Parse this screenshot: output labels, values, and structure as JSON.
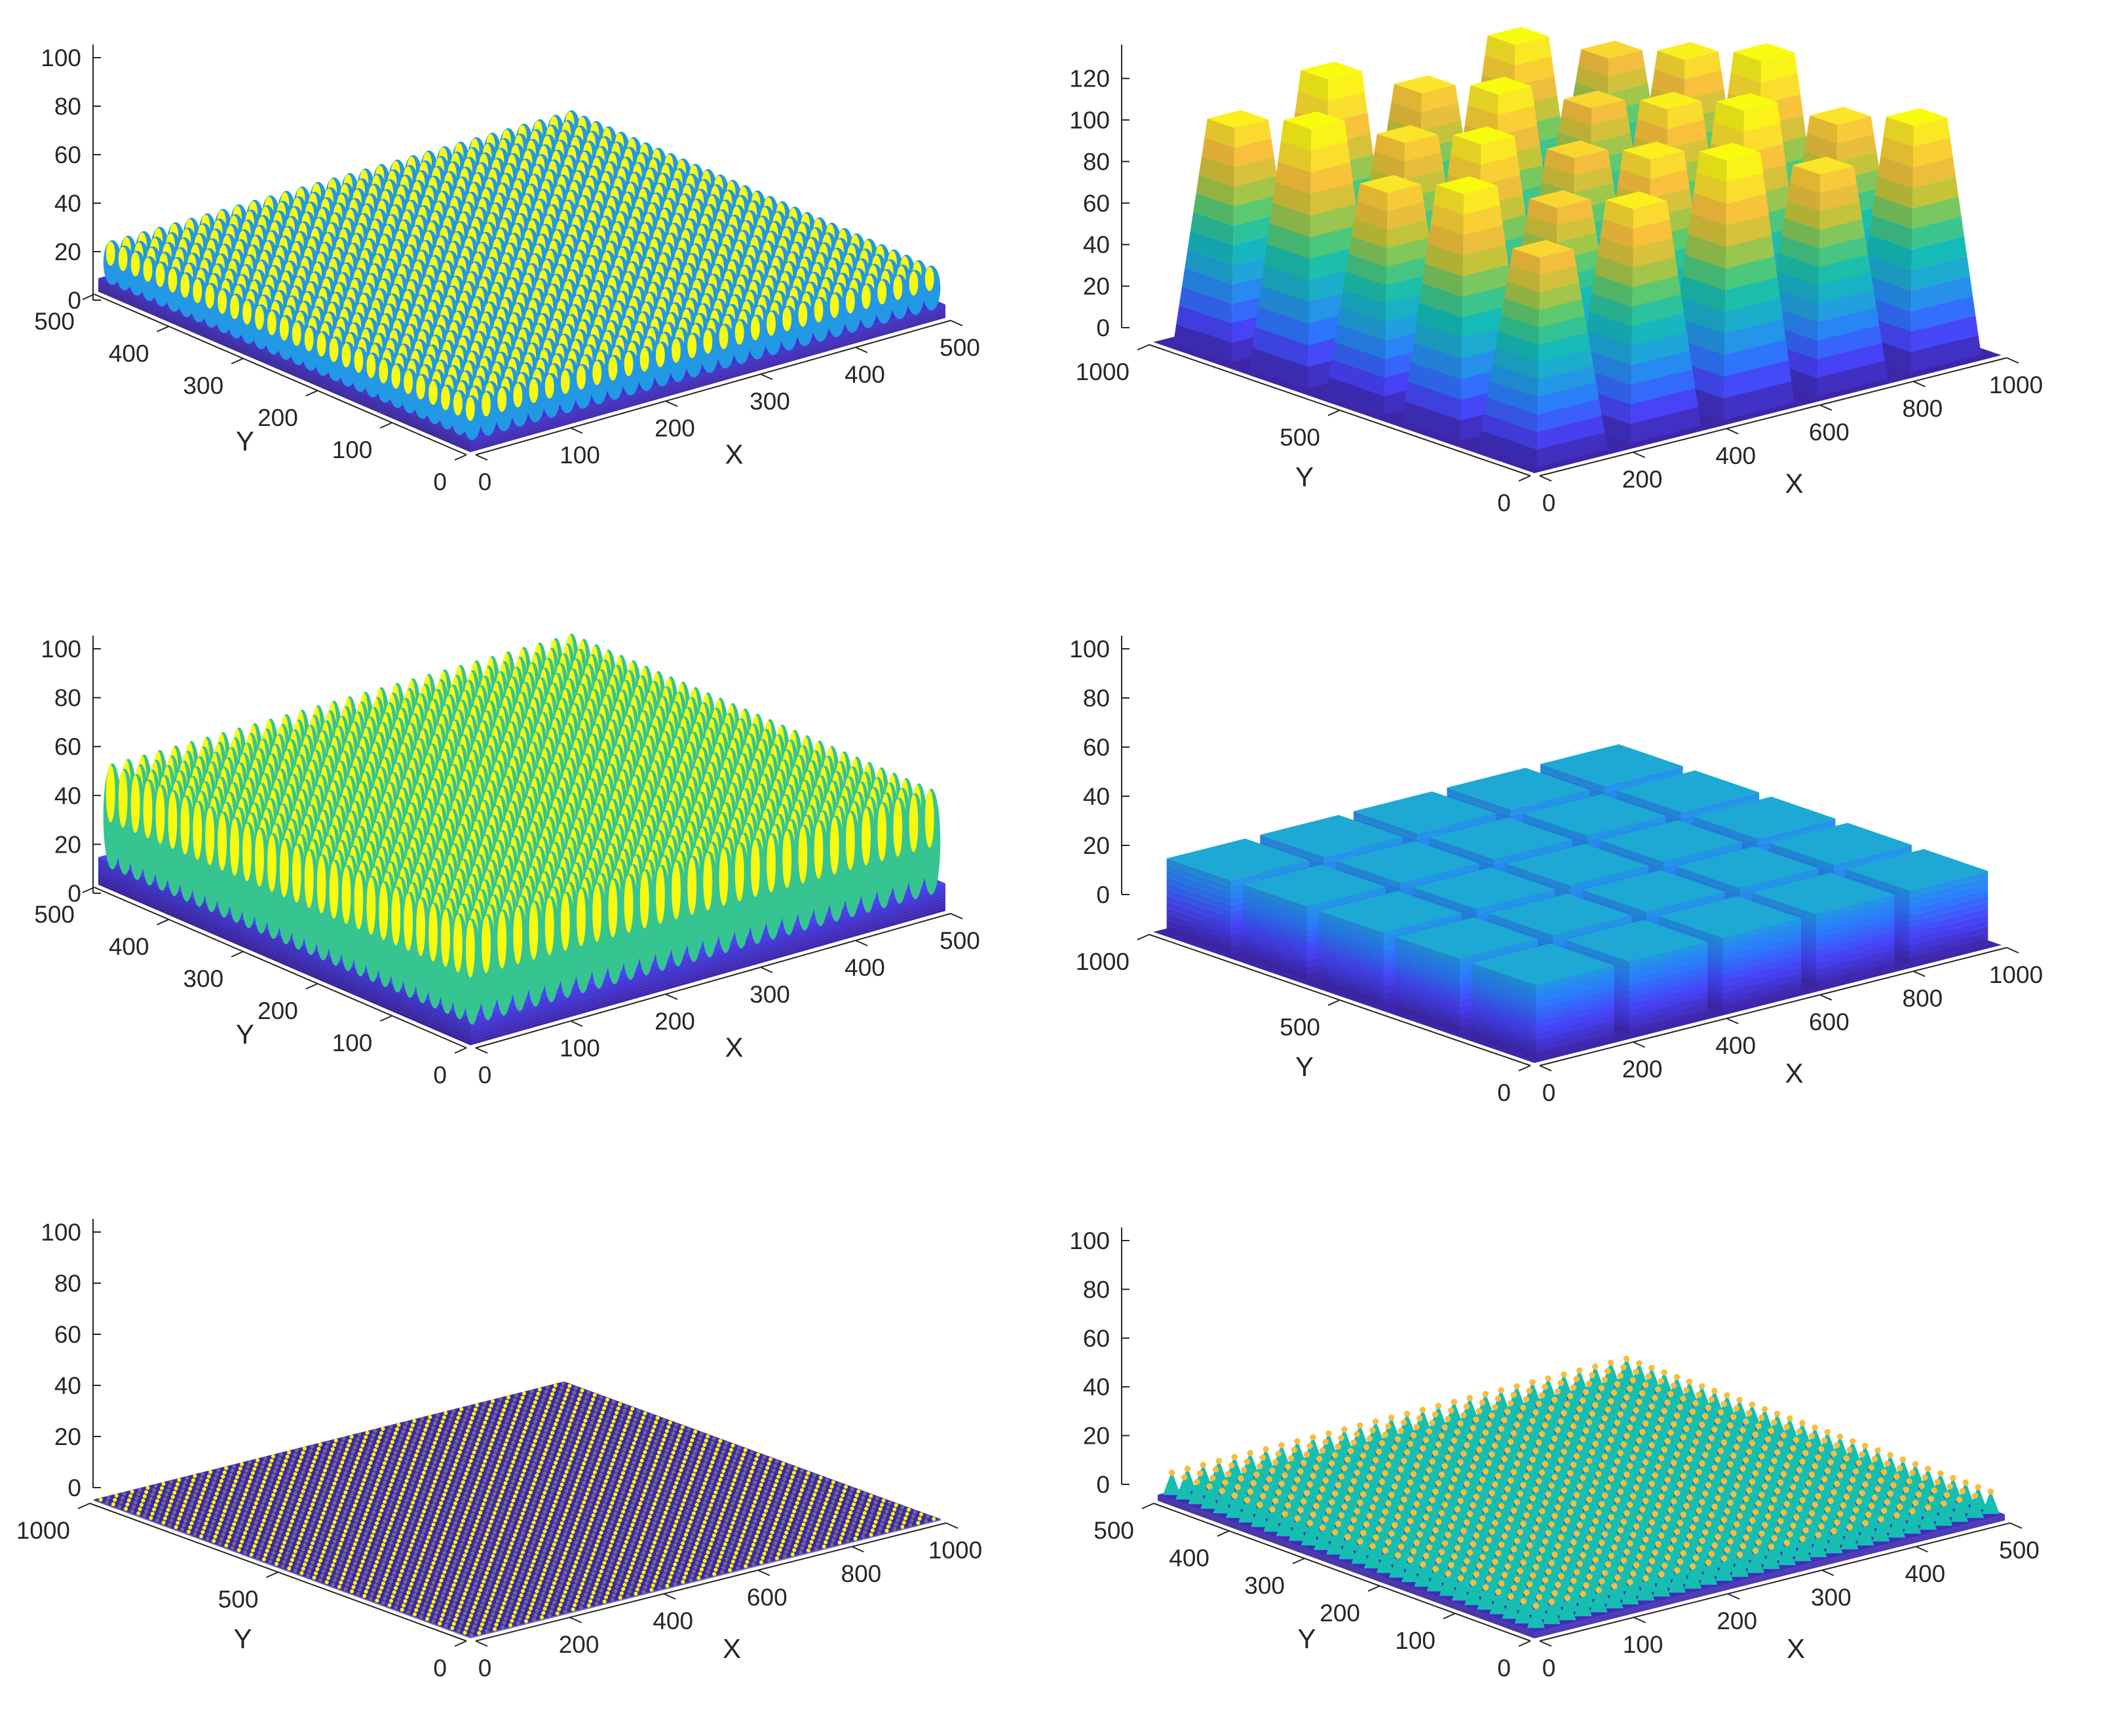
{
  "colors": {
    "colormap": [
      "#3e26a8",
      "#4743f8",
      "#2c7bfd",
      "#1fa5d9",
      "#13bdb4",
      "#54c974",
      "#c1c43a",
      "#f8bd3d",
      "#fbe32b",
      "#f9fb0e"
    ],
    "axis": "#262626",
    "background": "#ffffff"
  },
  "chart_data": [
    {
      "panel": "top-left",
      "type": "surface",
      "pattern": "hemispherical bumps",
      "xlabel": "X",
      "ylabel": "Y",
      "zlabel": "",
      "xlim": [
        0,
        500
      ],
      "ylim": [
        0,
        500
      ],
      "zlim": [
        0,
        100
      ],
      "xticks": [
        0,
        100,
        200,
        300,
        400,
        500
      ],
      "yticks": [
        0,
        100,
        200,
        300,
        400,
        500
      ],
      "zticks": [
        0,
        20,
        40,
        60,
        80,
        100
      ],
      "grid_count": 30,
      "z_base": 0,
      "z_peak": 22,
      "grid": false
    },
    {
      "panel": "top-right",
      "type": "surface",
      "pattern": "tapered pillars",
      "xlabel": "X",
      "ylabel": "Y",
      "zlabel": "",
      "xlim": [
        0,
        1000
      ],
      "ylim": [
        0,
        1000
      ],
      "zlim": [
        0,
        130
      ],
      "xticks": [
        0,
        200,
        400,
        600,
        800,
        1000
      ],
      "yticks": [
        0,
        500,
        1000
      ],
      "zticks": [
        0,
        20,
        40,
        60,
        80,
        100,
        120
      ],
      "grid_count": 5,
      "z_base": 0,
      "z_peak": 120,
      "grid": false
    },
    {
      "panel": "middle-left",
      "type": "surface",
      "pattern": "paraboloid bumps",
      "xlabel": "X",
      "ylabel": "Y",
      "zlabel": "",
      "xlim": [
        0,
        500
      ],
      "ylim": [
        0,
        500
      ],
      "zlim": [
        0,
        100
      ],
      "xticks": [
        0,
        100,
        200,
        300,
        400,
        500
      ],
      "yticks": [
        0,
        100,
        200,
        300,
        400,
        500
      ],
      "zticks": [
        0,
        20,
        40,
        60,
        80,
        100
      ],
      "grid_count": 30,
      "z_base": 0,
      "z_peak": 45,
      "grid": false
    },
    {
      "panel": "middle-right",
      "type": "surface",
      "pattern": "square blocks",
      "xlabel": "X",
      "ylabel": "Y",
      "zlabel": "",
      "xlim": [
        0,
        1000
      ],
      "ylim": [
        0,
        1000
      ],
      "zlim": [
        0,
        100
      ],
      "xticks": [
        0,
        200,
        400,
        600,
        800,
        1000
      ],
      "yticks": [
        0,
        500,
        1000
      ],
      "zticks": [
        0,
        20,
        40,
        60,
        80,
        100
      ],
      "grid_count": 5,
      "z_base": 0,
      "z_peak": 30,
      "grid": false
    },
    {
      "panel": "bottom-left",
      "type": "surface",
      "pattern": "fine dense bumps",
      "xlabel": "X",
      "ylabel": "Y",
      "zlabel": "",
      "xlim": [
        0,
        1000
      ],
      "ylim": [
        0,
        1000
      ],
      "zlim": [
        0,
        100
      ],
      "xticks": [
        0,
        200,
        400,
        600,
        800,
        1000
      ],
      "yticks": [
        0,
        500,
        1000
      ],
      "zticks": [
        0,
        20,
        40,
        60,
        80,
        100
      ],
      "grid_count": 60,
      "z_base": 0,
      "z_peak": 2,
      "grid": false
    },
    {
      "panel": "bottom-right",
      "type": "surface",
      "pattern": "conical bumps",
      "xlabel": "X",
      "ylabel": "Y",
      "zlabel": "",
      "xlim": [
        0,
        500
      ],
      "ylim": [
        0,
        500
      ],
      "zlim": [
        0,
        100
      ],
      "xticks": [
        0,
        100,
        200,
        300,
        400,
        500
      ],
      "yticks": [
        0,
        100,
        200,
        300,
        400,
        500
      ],
      "zticks": [
        0,
        20,
        40,
        60,
        80,
        100
      ],
      "grid_count": 30,
      "z_base": 0,
      "z_peak": 10,
      "grid": false
    }
  ]
}
